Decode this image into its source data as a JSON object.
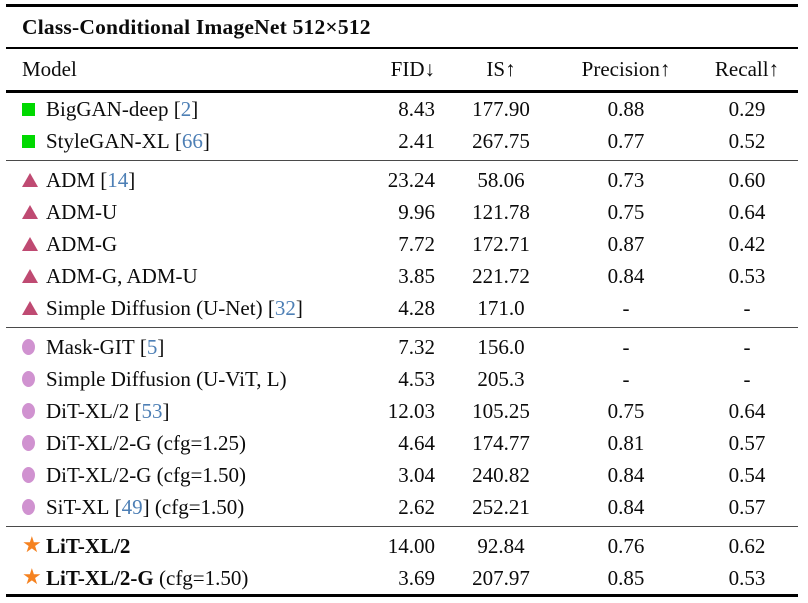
{
  "title": "Class-Conditional ImageNet 512×512",
  "columns": {
    "model": "Model",
    "fid": "FID↓",
    "is": "IS↑",
    "precision": "Precision↑",
    "recall": "Recall↑"
  },
  "colors": {
    "gan_marker_green": "#00d900",
    "adm_marker_rose": "#bf4a72",
    "dit_marker_plum": "#d092d0",
    "ours_marker_orange": "#f58220",
    "citation_blue": "#4d7fb5"
  },
  "marker_glyphs": {
    "star": "★"
  },
  "groups": [
    {
      "marker": "square",
      "rows": [
        {
          "name": "BigGAN-deep",
          "cite": "2",
          "suffix": "",
          "bold": false,
          "fid": "8.43",
          "is": "177.90",
          "precision": "0.88",
          "recall": "0.29"
        },
        {
          "name": "StyleGAN-XL",
          "cite": "66",
          "suffix": "",
          "bold": false,
          "fid": "2.41",
          "is": "267.75",
          "precision": "0.77",
          "recall": "0.52"
        }
      ]
    },
    {
      "marker": "triangle",
      "rows": [
        {
          "name": "ADM",
          "cite": "14",
          "suffix": "",
          "bold": false,
          "fid": "23.24",
          "is": "58.06",
          "precision": "0.73",
          "recall": "0.60"
        },
        {
          "name": "ADM-U",
          "cite": "",
          "suffix": "",
          "bold": false,
          "fid": "9.96",
          "is": "121.78",
          "precision": "0.75",
          "recall": "0.64"
        },
        {
          "name": "ADM-G",
          "cite": "",
          "suffix": "",
          "bold": false,
          "fid": "7.72",
          "is": "172.71",
          "precision": "0.87",
          "recall": "0.42"
        },
        {
          "name": "ADM-G, ADM-U",
          "cite": "",
          "suffix": "",
          "bold": false,
          "fid": "3.85",
          "is": "221.72",
          "precision": "0.84",
          "recall": "0.53"
        },
        {
          "name": "Simple Diffusion (U-Net)",
          "cite": "32",
          "suffix": "",
          "bold": false,
          "fid": "4.28",
          "is": "171.0",
          "precision": "-",
          "recall": "-"
        }
      ]
    },
    {
      "marker": "circle",
      "rows": [
        {
          "name": "Mask-GIT",
          "cite": "5",
          "suffix": "",
          "bold": false,
          "fid": "7.32",
          "is": "156.0",
          "precision": "-",
          "recall": "-"
        },
        {
          "name": "Simple Diffusion (U-ViT, L)",
          "cite": "",
          "suffix": "",
          "bold": false,
          "fid": "4.53",
          "is": "205.3",
          "precision": "-",
          "recall": "-"
        },
        {
          "name": "DiT-XL/2",
          "cite": "53",
          "suffix": "",
          "bold": false,
          "fid": "12.03",
          "is": "105.25",
          "precision": "0.75",
          "recall": "0.64"
        },
        {
          "name": "DiT-XL/2-G",
          "cite": "",
          "suffix": "(cfg=1.25)",
          "bold": false,
          "fid": "4.64",
          "is": "174.77",
          "precision": "0.81",
          "recall": "0.57"
        },
        {
          "name": "DiT-XL/2-G",
          "cite": "",
          "suffix": "(cfg=1.50)",
          "bold": false,
          "fid": "3.04",
          "is": "240.82",
          "precision": "0.84",
          "recall": "0.54"
        },
        {
          "name": "SiT-XL",
          "cite": "49",
          "suffix": "(cfg=1.50)",
          "bold": false,
          "fid": "2.62",
          "is": "252.21",
          "precision": "0.84",
          "recall": "0.57"
        }
      ]
    },
    {
      "marker": "star",
      "rows": [
        {
          "name": "LiT-XL/2",
          "cite": "",
          "suffix": "",
          "bold": true,
          "fid": "14.00",
          "is": "92.84",
          "precision": "0.76",
          "recall": "0.62"
        },
        {
          "name": "LiT-XL/2-G",
          "cite": "",
          "suffix": "(cfg=1.50)",
          "bold": true,
          "fid": "3.69",
          "is": "207.97",
          "precision": "0.85",
          "recall": "0.53"
        }
      ]
    }
  ]
}
